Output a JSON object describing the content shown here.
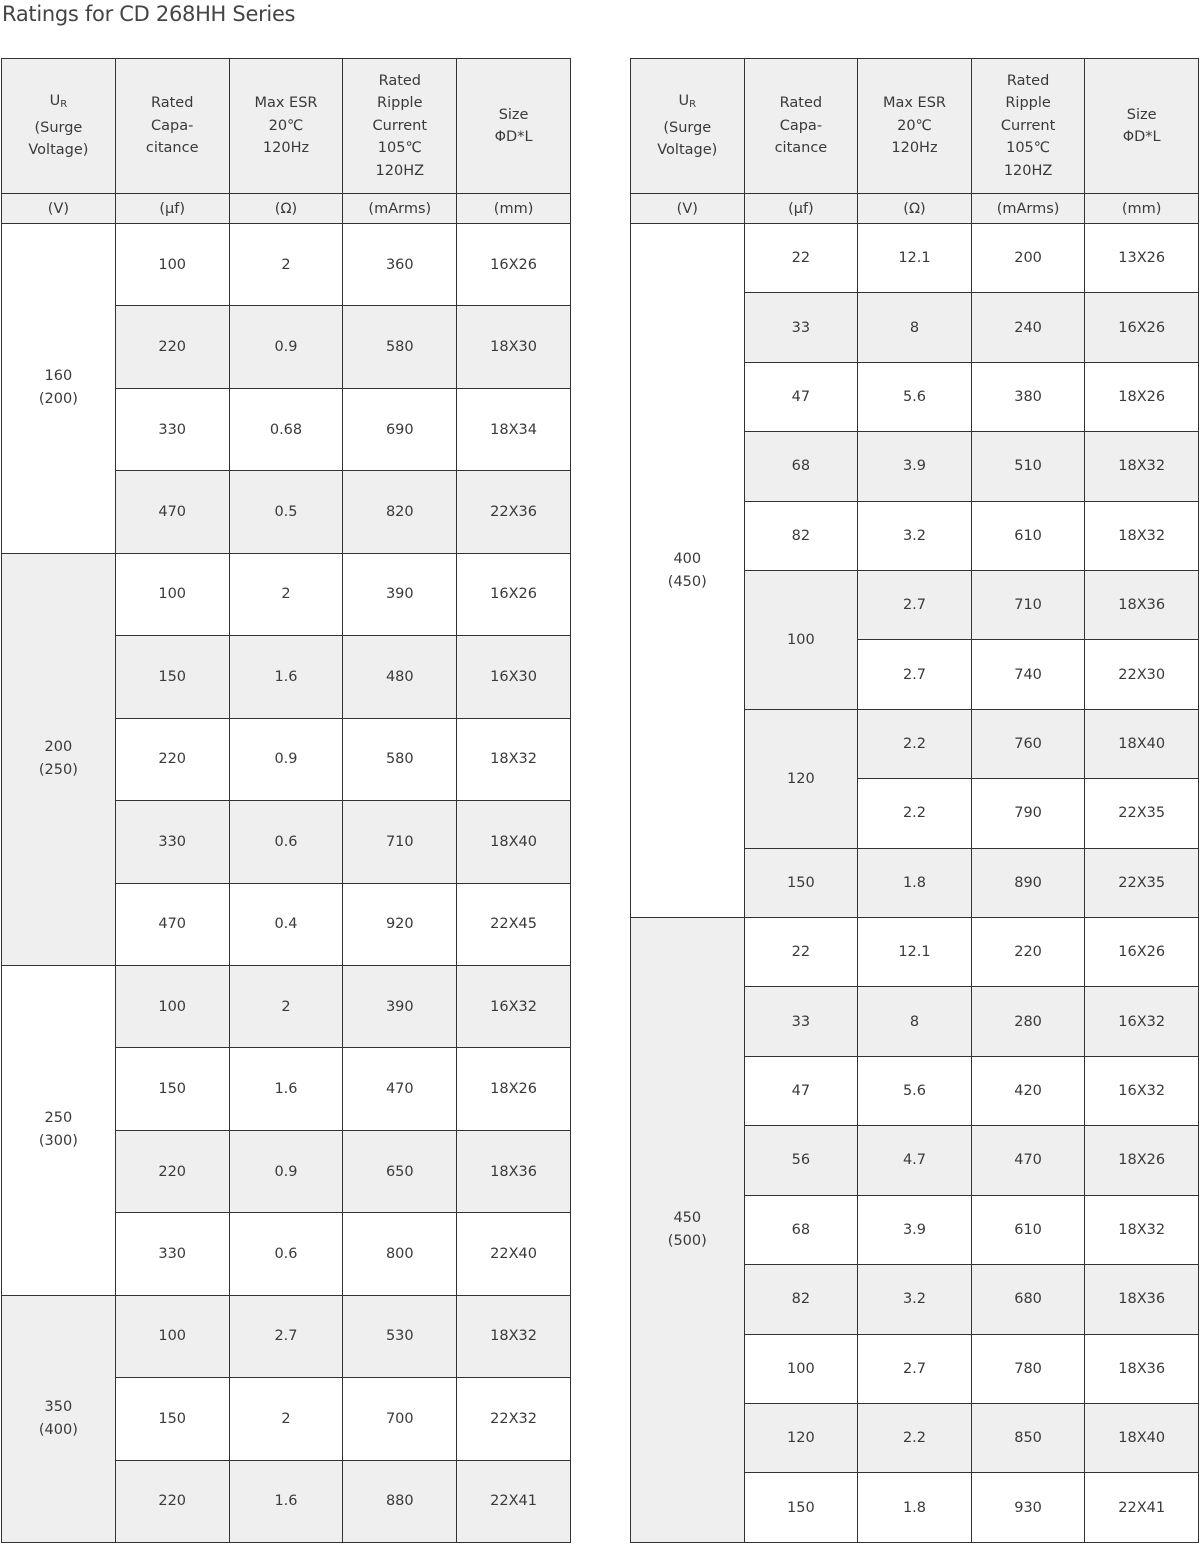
{
  "title": "Ratings for CD 268HH  Series",
  "colors": {
    "border": "#333333",
    "shade": "#efefef",
    "text": "#3a3a3a"
  },
  "headers": [
    {
      "lines": [
        "U|R",
        "(Surge",
        "Voltage)"
      ],
      "unit": "(V)"
    },
    {
      "lines": [
        "Rated",
        "Capa-",
        "citance"
      ],
      "unit": "(μf)"
    },
    {
      "lines": [
        "Max ESR",
        "20℃",
        "120Hz"
      ],
      "unit": "(Ω)"
    },
    {
      "lines": [
        "Rated",
        "Ripple",
        "Current",
        "105℃",
        "120HZ"
      ],
      "unit": "(mArms)"
    },
    {
      "lines": [
        "Size",
        "ΦD*L"
      ],
      "unit": "(mm)"
    }
  ],
  "tables": [
    {
      "groups": [
        {
          "voltage": "160",
          "surge": "(200)",
          "caps": [
            {
              "cap": "100",
              "items": [
                {
                  "esr": "2",
                  "ripple": "360",
                  "size": "16X26"
                }
              ]
            },
            {
              "cap": "220",
              "items": [
                {
                  "esr": "0.9",
                  "ripple": "580",
                  "size": "18X30"
                }
              ]
            },
            {
              "cap": "330",
              "items": [
                {
                  "esr": "0.68",
                  "ripple": "690",
                  "size": "18X34"
                }
              ]
            },
            {
              "cap": "470",
              "items": [
                {
                  "esr": "0.5",
                  "ripple": "820",
                  "size": "22X36"
                }
              ]
            }
          ]
        },
        {
          "voltage": "200",
          "surge": "(250)",
          "caps": [
            {
              "cap": "100",
              "items": [
                {
                  "esr": "2",
                  "ripple": "390",
                  "size": "16X26"
                }
              ]
            },
            {
              "cap": "150",
              "items": [
                {
                  "esr": "1.6",
                  "ripple": "480",
                  "size": "16X30"
                }
              ]
            },
            {
              "cap": "220",
              "items": [
                {
                  "esr": "0.9",
                  "ripple": "580",
                  "size": "18X32"
                }
              ]
            },
            {
              "cap": "330",
              "items": [
                {
                  "esr": "0.6",
                  "ripple": "710",
                  "size": "18X40"
                }
              ]
            },
            {
              "cap": "470",
              "items": [
                {
                  "esr": "0.4",
                  "ripple": "920",
                  "size": "22X45"
                }
              ]
            }
          ]
        },
        {
          "voltage": "250",
          "surge": "(300)",
          "caps": [
            {
              "cap": "100",
              "items": [
                {
                  "esr": "2",
                  "ripple": "390",
                  "size": "16X32"
                }
              ]
            },
            {
              "cap": "150",
              "items": [
                {
                  "esr": "1.6",
                  "ripple": "470",
                  "size": "18X26"
                }
              ]
            },
            {
              "cap": "220",
              "items": [
                {
                  "esr": "0.9",
                  "ripple": "650",
                  "size": "18X36"
                }
              ]
            },
            {
              "cap": "330",
              "items": [
                {
                  "esr": "0.6",
                  "ripple": "800",
                  "size": "22X40"
                }
              ]
            }
          ]
        },
        {
          "voltage": "350",
          "surge": "(400)",
          "caps": [
            {
              "cap": "100",
              "items": [
                {
                  "esr": "2.7",
                  "ripple": "530",
                  "size": "18X32"
                }
              ]
            },
            {
              "cap": "150",
              "items": [
                {
                  "esr": "2",
                  "ripple": "700",
                  "size": "22X32"
                }
              ]
            },
            {
              "cap": "220",
              "items": [
                {
                  "esr": "1.6",
                  "ripple": "880",
                  "size": "22X41"
                }
              ]
            }
          ]
        }
      ]
    },
    {
      "groups": [
        {
          "voltage": "400",
          "surge": "(450)",
          "caps": [
            {
              "cap": "22",
              "items": [
                {
                  "esr": "12.1",
                  "ripple": "200",
                  "size": "13X26"
                }
              ]
            },
            {
              "cap": "33",
              "items": [
                {
                  "esr": "8",
                  "ripple": "240",
                  "size": "16X26"
                }
              ]
            },
            {
              "cap": "47",
              "items": [
                {
                  "esr": "5.6",
                  "ripple": "380",
                  "size": "18X26"
                }
              ]
            },
            {
              "cap": "68",
              "items": [
                {
                  "esr": "3.9",
                  "ripple": "510",
                  "size": "18X32"
                }
              ]
            },
            {
              "cap": "82",
              "items": [
                {
                  "esr": "3.2",
                  "ripple": "610",
                  "size": "18X32"
                }
              ]
            },
            {
              "cap": "100",
              "items": [
                {
                  "esr": "2.7",
                  "ripple": "710",
                  "size": "18X36"
                },
                {
                  "esr": "2.7",
                  "ripple": "740",
                  "size": "22X30"
                }
              ]
            },
            {
              "cap": "120",
              "items": [
                {
                  "esr": "2.2",
                  "ripple": "760",
                  "size": "18X40"
                },
                {
                  "esr": "2.2",
                  "ripple": "790",
                  "size": "22X35"
                }
              ]
            },
            {
              "cap": "150",
              "items": [
                {
                  "esr": "1.8",
                  "ripple": "890",
                  "size": "22X35"
                }
              ]
            }
          ]
        },
        {
          "voltage": "450",
          "surge": "(500)",
          "caps": [
            {
              "cap": "22",
              "items": [
                {
                  "esr": "12.1",
                  "ripple": "220",
                  "size": "16X26"
                }
              ]
            },
            {
              "cap": "33",
              "items": [
                {
                  "esr": "8",
                  "ripple": "280",
                  "size": "16X32"
                }
              ]
            },
            {
              "cap": "47",
              "items": [
                {
                  "esr": "5.6",
                  "ripple": "420",
                  "size": "16X32"
                }
              ]
            },
            {
              "cap": "56",
              "items": [
                {
                  "esr": "4.7",
                  "ripple": "470",
                  "size": "18X26"
                }
              ]
            },
            {
              "cap": "68",
              "items": [
                {
                  "esr": "3.9",
                  "ripple": "610",
                  "size": "18X32"
                }
              ]
            },
            {
              "cap": "82",
              "items": [
                {
                  "esr": "3.2",
                  "ripple": "680",
                  "size": "18X36"
                }
              ]
            },
            {
              "cap": "100",
              "items": [
                {
                  "esr": "2.7",
                  "ripple": "780",
                  "size": "18X36"
                }
              ]
            },
            {
              "cap": "120",
              "items": [
                {
                  "esr": "2.2",
                  "ripple": "850",
                  "size": "18X40"
                }
              ]
            },
            {
              "cap": "150",
              "items": [
                {
                  "esr": "1.8",
                  "ripple": "930",
                  "size": "22X41"
                }
              ]
            }
          ]
        }
      ]
    }
  ]
}
